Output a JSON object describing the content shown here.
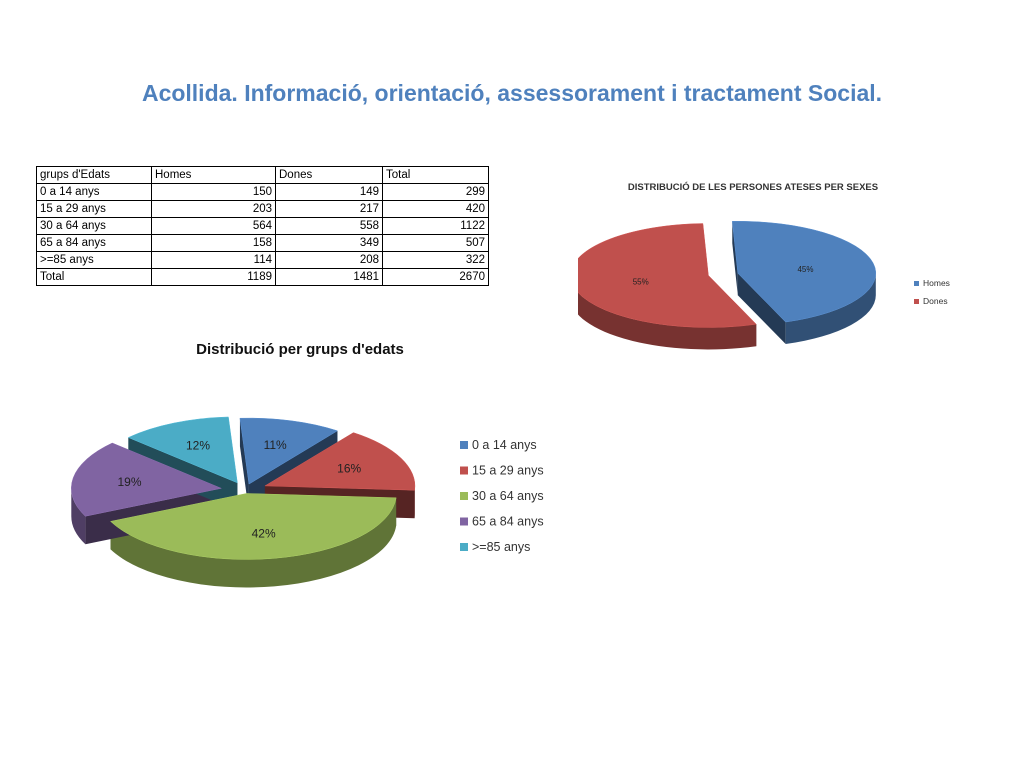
{
  "page": {
    "title": "Acollida. Informació, orientació, assessorament i tractament Social."
  },
  "table": {
    "headers": [
      "grups d'Edats",
      "Homes",
      "Dones",
      "Total"
    ],
    "rows": [
      [
        "0 a 14 anys",
        "150",
        "149",
        "299"
      ],
      [
        "15 a 29 anys",
        "203",
        "217",
        "420"
      ],
      [
        "30 a 64 anys",
        "564",
        "558",
        "1122"
      ],
      [
        "65 a 84 anys",
        "158",
        "349",
        "507"
      ],
      [
        ">=85 anys",
        "114",
        "208",
        "322"
      ],
      [
        "Total",
        "1189",
        "1481",
        "2670"
      ]
    ]
  },
  "chart_data": [
    {
      "type": "pie",
      "title": "DISTRIBUCIÓ DE LES PERSONES ATESES PER SEXES",
      "categories": [
        "Homes",
        "Dones"
      ],
      "values": [
        45,
        55
      ],
      "labels": [
        "45%",
        "55%"
      ],
      "colors": [
        "#4f81bd",
        "#c0504d"
      ],
      "legend": "right",
      "exploded": true,
      "three_d": true
    },
    {
      "type": "pie",
      "title": "Distribució per grups d'edats",
      "categories": [
        "0 a 14 anys",
        "15 a 29 anys",
        "30 a 64 anys",
        "65 a 84 anys",
        ">=85 anys"
      ],
      "values": [
        11,
        16,
        42,
        19,
        12
      ],
      "labels": [
        "11%",
        "16%",
        "42%",
        "19%",
        "12%"
      ],
      "colors": [
        "#4f81bd",
        "#c0504d",
        "#9bbb59",
        "#8064a2",
        "#4bacc6"
      ],
      "legend": "right",
      "exploded": true,
      "three_d": true
    }
  ]
}
